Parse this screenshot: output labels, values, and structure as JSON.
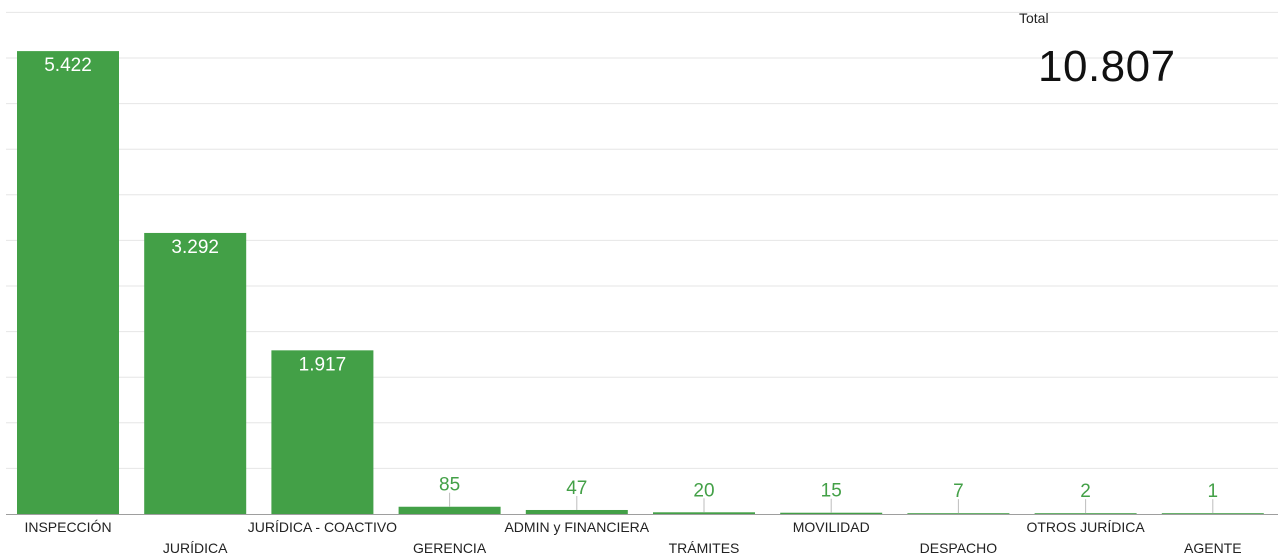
{
  "chart_data": {
    "type": "bar",
    "title": "",
    "xlabel": "",
    "ylabel": "",
    "ylim": [
      0,
      5880
    ],
    "grid": true,
    "categories": [
      "INSPECCIÓN",
      "JURÍDICA",
      "JURÍDICA - COACTIVO",
      "GERENCIA",
      "ADMIN y FINANCIERA",
      "TRÁMITES",
      "MOVILIDAD",
      "DESPACHO",
      "OTROS JURÍDICA",
      "AGENTE"
    ],
    "values": [
      5422,
      3292,
      1917,
      85,
      47,
      20,
      15,
      7,
      2,
      1
    ],
    "value_labels": [
      "5.422",
      "3.292",
      "1.917",
      "85",
      "47",
      "20",
      "15",
      "7",
      "2",
      "1"
    ],
    "bar_color": "#43a047",
    "inside_label_color": "#ffffff",
    "outside_label_color": "#43a047"
  },
  "summary": {
    "total_label": "Total",
    "total_value": "10.807"
  }
}
